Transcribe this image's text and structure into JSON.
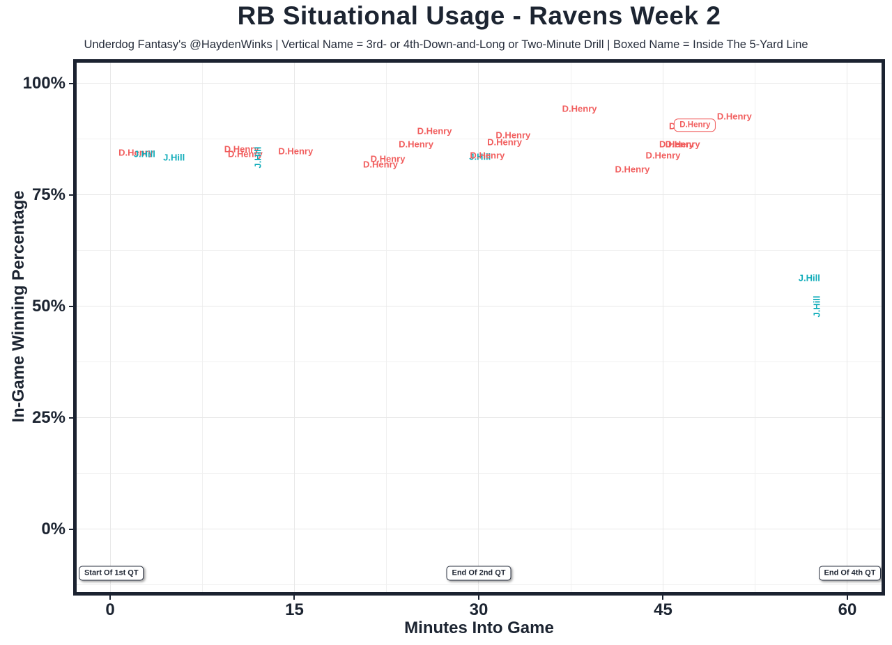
{
  "chart_data": {
    "type": "scatter",
    "title": "RB Situational Usage - Ravens Week 2",
    "subtitle": "Underdog Fantasy's @HaydenWinks | Vertical Name = 3rd- or 4th-Down-and-Long or Two-Minute Drill | Boxed Name = Inside The 5-Yard Line",
    "xlabel": "Minutes Into Game",
    "ylabel": "In-Game Winning Percentage",
    "xlim": [
      -3,
      63
    ],
    "ylim": [
      -15.6,
      105.4
    ],
    "grid": "major+minor",
    "legend_position": "none",
    "x_ticks": [
      {
        "value": 0,
        "label": "0"
      },
      {
        "value": 15,
        "label": "15"
      },
      {
        "value": 30,
        "label": "30"
      },
      {
        "value": 45,
        "label": "45"
      },
      {
        "value": 60,
        "label": "60"
      }
    ],
    "y_ticks": [
      {
        "value": 0,
        "label": "0%"
      },
      {
        "value": 25,
        "label": "25%"
      },
      {
        "value": 50,
        "label": "50%"
      },
      {
        "value": 75,
        "label": "75%"
      },
      {
        "value": 100,
        "label": "100%"
      }
    ],
    "x_minor_ticks": [
      7.5,
      22.5,
      37.5,
      52.5
    ],
    "y_minor_ticks": [
      -12.5,
      12.5,
      37.5,
      62.5,
      87.5
    ],
    "colors": {
      "henry": "#f15e5e",
      "hill": "#13adba",
      "axis_text": "#1c2431",
      "panel_border": "#1b2230",
      "grid_major": "#e8e8e8",
      "grid_minor": "#f0f0f0"
    },
    "points": [
      {
        "player": "henry",
        "label": "D.Henry",
        "minutes": 2.1,
        "win_pct": 84.5,
        "style": "normal"
      },
      {
        "player": "hill",
        "label": "J.Hill",
        "minutes": 2.8,
        "win_pct": 84.2,
        "style": "normal"
      },
      {
        "player": "hill",
        "label": "J.Hill",
        "minutes": 5.2,
        "win_pct": 83.4,
        "style": "normal"
      },
      {
        "player": "henry",
        "label": "D.Henry",
        "minutes": 10.7,
        "win_pct": 85.3,
        "style": "normal"
      },
      {
        "player": "henry",
        "label": "D.Henry",
        "minutes": 11.0,
        "win_pct": 84.2,
        "style": "normal"
      },
      {
        "player": "hill",
        "label": "J.Hill",
        "minutes": 12.0,
        "win_pct": 83.3,
        "style": "vertical"
      },
      {
        "player": "henry",
        "label": "D.Henry",
        "minutes": 15.1,
        "win_pct": 84.8,
        "style": "normal"
      },
      {
        "player": "henry",
        "label": "D.Henry",
        "minutes": 22.0,
        "win_pct": 81.8,
        "style": "normal"
      },
      {
        "player": "henry",
        "label": "D.Henry",
        "minutes": 22.6,
        "win_pct": 83.1,
        "style": "normal"
      },
      {
        "player": "henry",
        "label": "D.Henry",
        "minutes": 24.9,
        "win_pct": 86.4,
        "style": "normal"
      },
      {
        "player": "henry",
        "label": "D.Henry",
        "minutes": 26.4,
        "win_pct": 89.3,
        "style": "normal"
      },
      {
        "player": "hill",
        "label": "J.Hill",
        "minutes": 30.1,
        "win_pct": 83.5,
        "style": "normal"
      },
      {
        "player": "henry",
        "label": "D.Henry",
        "minutes": 30.7,
        "win_pct": 83.9,
        "style": "normal"
      },
      {
        "player": "henry",
        "label": "D.Henry",
        "minutes": 32.1,
        "win_pct": 86.8,
        "style": "normal"
      },
      {
        "player": "henry",
        "label": "D.Henry",
        "minutes": 32.8,
        "win_pct": 88.4,
        "style": "normal"
      },
      {
        "player": "henry",
        "label": "D.Henry",
        "minutes": 38.2,
        "win_pct": 94.3,
        "style": "normal"
      },
      {
        "player": "henry",
        "label": "D.Henry",
        "minutes": 42.5,
        "win_pct": 80.7,
        "style": "normal"
      },
      {
        "player": "henry",
        "label": "D.Henry",
        "minutes": 45.0,
        "win_pct": 83.9,
        "style": "normal"
      },
      {
        "player": "henry",
        "label": "D.Henry",
        "minutes": 46.1,
        "win_pct": 86.4,
        "style": "normal"
      },
      {
        "player": "henry",
        "label": "D.Henry",
        "minutes": 46.6,
        "win_pct": 86.4,
        "style": "normal"
      },
      {
        "player": "henry",
        "label": "D.Henry",
        "minutes": 46.9,
        "win_pct": 90.4,
        "style": "normal"
      },
      {
        "player": "henry",
        "label": "D.Henry",
        "minutes": 47.6,
        "win_pct": 90.6,
        "style": "boxed"
      },
      {
        "player": "henry",
        "label": "D.Henry",
        "minutes": 50.8,
        "win_pct": 92.6,
        "style": "normal"
      },
      {
        "player": "hill",
        "label": "J.Hill",
        "minutes": 56.9,
        "win_pct": 56.4,
        "style": "normal"
      },
      {
        "player": "hill",
        "label": "J.Hill",
        "minutes": 57.5,
        "win_pct": 49.9,
        "style": "vertical"
      }
    ],
    "annotations": [
      {
        "label": "Start Of 1st QT",
        "minutes": 0.1,
        "win_pct": -9.9
      },
      {
        "label": "End Of 2nd QT",
        "minutes": 30.0,
        "win_pct": -9.9
      },
      {
        "label": "End Of 4th QT",
        "minutes": 60.2,
        "win_pct": -9.9
      }
    ]
  }
}
